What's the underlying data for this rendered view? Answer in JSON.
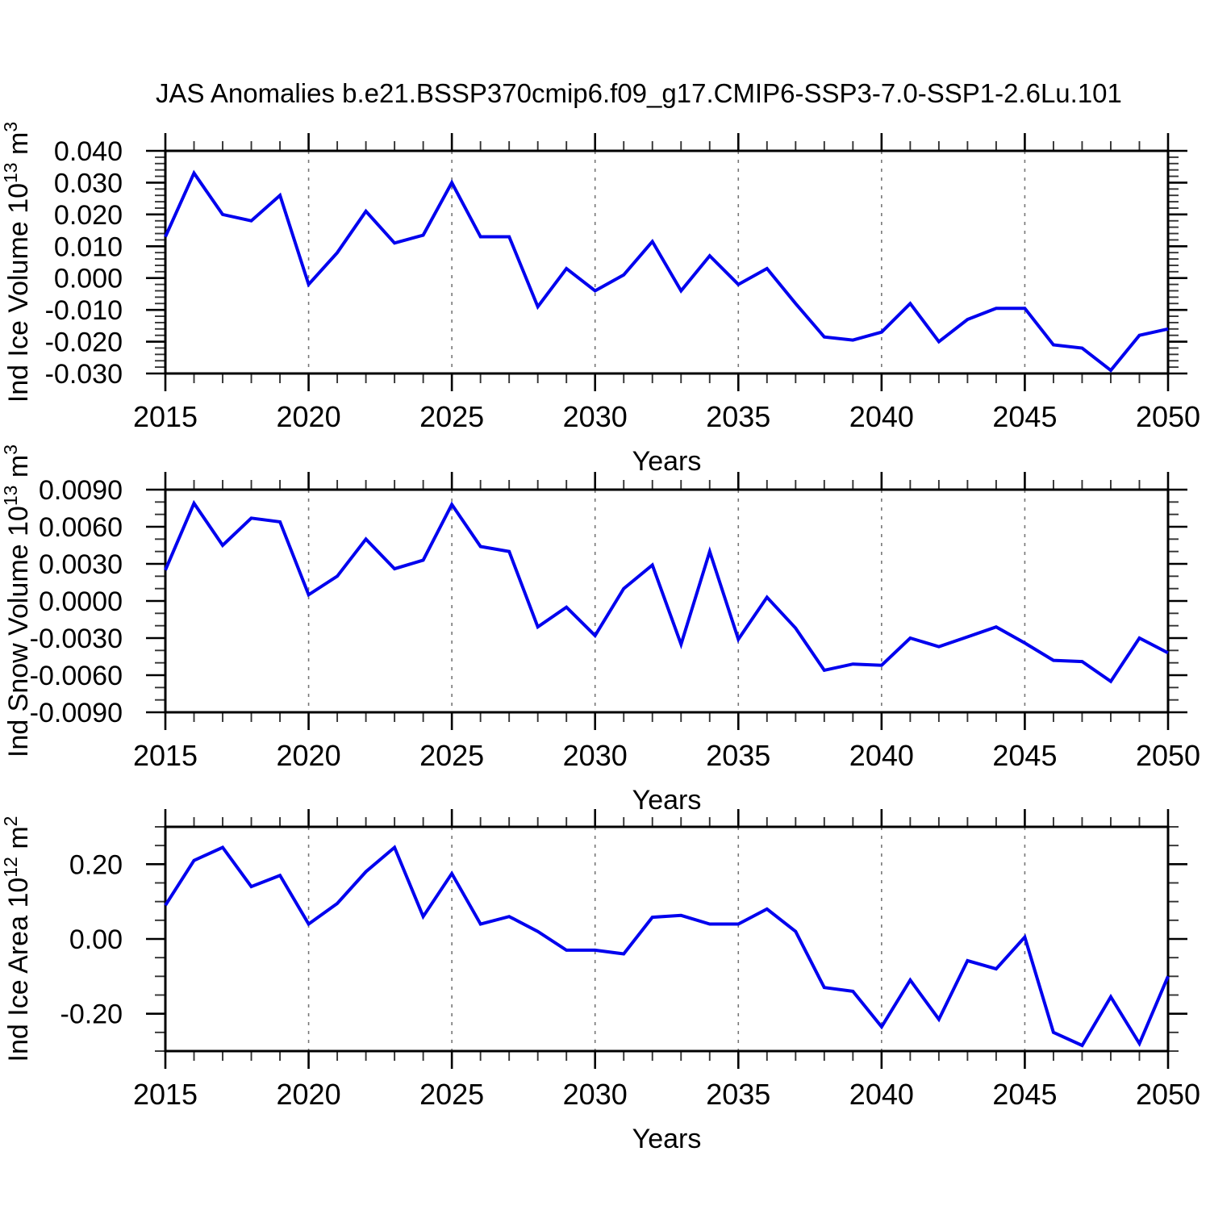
{
  "title": "JAS Anomalies b.e21.BSSP370cmip6.f09_g17.CMIP6-SSP3-7.0-SSP1-2.6Lu.101",
  "colors": {
    "line": "#0000EE",
    "frame": "#000000",
    "major_tick": "#000000",
    "minor_tick": "#333333",
    "grid": "#777777",
    "text": "#000000",
    "background": "#ffffff"
  },
  "x_axis": {
    "label": "Years",
    "range": [
      2015,
      2050
    ],
    "major_step": 5,
    "minor_step": 1,
    "ticks": [
      {
        "v": 2015,
        "label": "2015"
      },
      {
        "v": 2020,
        "label": "2020"
      },
      {
        "v": 2025,
        "label": "2025"
      },
      {
        "v": 2030,
        "label": "2030"
      },
      {
        "v": 2035,
        "label": "2035"
      },
      {
        "v": 2040,
        "label": "2040"
      },
      {
        "v": 2045,
        "label": "2045"
      },
      {
        "v": 2050,
        "label": "2050"
      }
    ]
  },
  "chart_data": [
    {
      "type": "line",
      "panel": "ice-volume",
      "ylabel_text": "Ind Ice Volume 10^13 m^3",
      "ylabel_parts": [
        {
          "t": "Ind Ice Volume 10",
          "sup": false
        },
        {
          "t": "13",
          "sup": true
        },
        {
          "t": " m",
          "sup": false
        },
        {
          "t": "3",
          "sup": true
        }
      ],
      "xlabel": "Years",
      "ylim": [
        -0.03,
        0.04
      ],
      "yminor_step": 0.002,
      "yticks": [
        {
          "v": 0.04,
          "label": "0.040"
        },
        {
          "v": 0.03,
          "label": "0.030"
        },
        {
          "v": 0.02,
          "label": "0.020"
        },
        {
          "v": 0.01,
          "label": "0.010"
        },
        {
          "v": 0.0,
          "label": "0.000"
        },
        {
          "v": -0.01,
          "label": "-0.010"
        },
        {
          "v": -0.02,
          "label": "-0.020"
        },
        {
          "v": -0.03,
          "label": "-0.030"
        }
      ],
      "x": [
        2015,
        2016,
        2017,
        2018,
        2019,
        2020,
        2021,
        2022,
        2023,
        2024,
        2025,
        2026,
        2027,
        2028,
        2029,
        2030,
        2031,
        2032,
        2033,
        2034,
        2035,
        2036,
        2037,
        2038,
        2039,
        2040,
        2041,
        2042,
        2043,
        2044,
        2045,
        2046,
        2047,
        2048,
        2049,
        2050
      ],
      "values": [
        0.013,
        0.033,
        0.02,
        0.018,
        0.026,
        -0.002,
        0.008,
        0.021,
        0.011,
        0.0135,
        0.03,
        0.013,
        0.013,
        -0.009,
        0.003,
        -0.004,
        0.001,
        0.0115,
        -0.004,
        0.007,
        -0.002,
        0.003,
        -0.008,
        -0.0185,
        -0.0195,
        -0.017,
        -0.008,
        -0.02,
        -0.013,
        -0.0095,
        -0.0095,
        -0.021,
        -0.022,
        -0.029,
        -0.018,
        -0.016
      ]
    },
    {
      "type": "line",
      "panel": "snow-volume",
      "ylabel_text": "Ind Snow Volume 10^13 m^3",
      "ylabel_parts": [
        {
          "t": "Ind Snow Volume 10",
          "sup": false
        },
        {
          "t": "13",
          "sup": true
        },
        {
          "t": " m",
          "sup": false
        },
        {
          "t": "3",
          "sup": true
        }
      ],
      "xlabel": "Years",
      "ylim": [
        -0.009,
        0.009
      ],
      "yminor_step": 0.001,
      "yticks": [
        {
          "v": 0.009,
          "label": "0.0090"
        },
        {
          "v": 0.006,
          "label": "0.0060"
        },
        {
          "v": 0.003,
          "label": "0.0030"
        },
        {
          "v": 0.0,
          "label": "0.0000"
        },
        {
          "v": -0.003,
          "label": "-0.0030"
        },
        {
          "v": -0.006,
          "label": "-0.0060"
        },
        {
          "v": -0.009,
          "label": "-0.0090"
        }
      ],
      "x": [
        2015,
        2016,
        2017,
        2018,
        2019,
        2020,
        2021,
        2022,
        2023,
        2024,
        2025,
        2026,
        2027,
        2028,
        2029,
        2030,
        2031,
        2032,
        2033,
        2034,
        2035,
        2036,
        2037,
        2038,
        2039,
        2040,
        2041,
        2042,
        2043,
        2044,
        2045,
        2046,
        2047,
        2048,
        2049,
        2050
      ],
      "values": [
        0.0025,
        0.0079,
        0.0045,
        0.0067,
        0.0064,
        0.0005,
        0.002,
        0.005,
        0.0026,
        0.0033,
        0.0078,
        0.0044,
        0.004,
        -0.0021,
        -0.0005,
        -0.0028,
        0.001,
        0.0029,
        -0.0035,
        0.004,
        -0.0031,
        0.0003,
        -0.0022,
        -0.0056,
        -0.0051,
        -0.0052,
        -0.003,
        -0.0037,
        -0.0029,
        -0.0021,
        -0.0034,
        -0.0048,
        -0.0049,
        -0.0065,
        -0.003,
        -0.0042
      ]
    },
    {
      "type": "line",
      "panel": "ice-area",
      "ylabel_text": "Ind Ice Area 10^12 m^2",
      "ylabel_parts": [
        {
          "t": "Ind Ice Area 10",
          "sup": false
        },
        {
          "t": "12",
          "sup": true
        },
        {
          "t": " m",
          "sup": false
        },
        {
          "t": "2",
          "sup": true
        }
      ],
      "xlabel": "Years",
      "ylim": [
        -0.3,
        0.3
      ],
      "yminor_step": 0.05,
      "yticks": [
        {
          "v": 0.2,
          "label": "0.20"
        },
        {
          "v": 0.0,
          "label": "0.00"
        },
        {
          "v": -0.2,
          "label": "-0.20"
        }
      ],
      "x": [
        2015,
        2016,
        2017,
        2018,
        2019,
        2020,
        2021,
        2022,
        2023,
        2024,
        2025,
        2026,
        2027,
        2028,
        2029,
        2030,
        2031,
        2032,
        2033,
        2034,
        2035,
        2036,
        2037,
        2038,
        2039,
        2040,
        2041,
        2042,
        2043,
        2044,
        2045,
        2046,
        2047,
        2048,
        2049,
        2050
      ],
      "values": [
        0.09,
        0.21,
        0.245,
        0.14,
        0.17,
        0.04,
        0.095,
        0.18,
        0.245,
        0.06,
        0.175,
        0.04,
        0.06,
        0.02,
        -0.03,
        -0.03,
        -0.04,
        0.058,
        0.063,
        0.04,
        0.04,
        0.08,
        0.02,
        -0.13,
        -0.14,
        -0.235,
        -0.11,
        -0.215,
        -0.058,
        -0.08,
        0.005,
        -0.25,
        -0.285,
        -0.155,
        -0.28,
        -0.1
      ]
    }
  ]
}
